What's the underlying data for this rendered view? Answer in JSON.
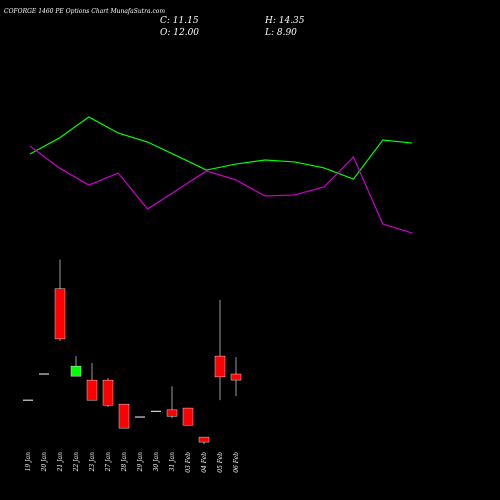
{
  "chart_data": {
    "type": "candlestick",
    "title": "COFORGE 1460 PE Options Chart MunafaSutra.com",
    "ohlc_labels": [
      "C: 11.15",
      "H: 14.35",
      "O: 12.00",
      "L: 8.90"
    ],
    "categories": [
      "19 Jan",
      "20 Jan",
      "21 Jan",
      "22 Jan",
      "23 Jan",
      "27 Jan",
      "28 Jan",
      "29 Jan",
      "30 Jan",
      "31 Jan",
      "03 Feb",
      "04 Feb",
      "05 Feb",
      "06 Feb"
    ],
    "open": [
      8.35,
      12.0,
      23.9,
      11.7,
      11.15,
      11.15,
      7.8,
      6.0,
      6.8,
      7.0,
      7.25,
      3.2,
      14.5,
      12.0
    ],
    "high": [
      8.35,
      12.0,
      27.95,
      14.5,
      13.55,
      11.45,
      7.8,
      6.0,
      6.8,
      10.3,
      7.25,
      3.2,
      22.35,
      14.35
    ],
    "low": [
      8.35,
      12.0,
      16.6,
      11.7,
      8.35,
      7.4,
      4.45,
      6.0,
      6.8,
      5.85,
      4.85,
      2.2,
      8.35,
      8.9
    ],
    "close": [
      8.35,
      12.0,
      16.9,
      13.1,
      8.35,
      7.65,
      4.45,
      6.0,
      6.8,
      6.1,
      4.85,
      2.5,
      11.6,
      11.15
    ],
    "up_color": "#00ff00",
    "down_color": "#ff0000",
    "doji_color": "#ffffff",
    "ylim": [
      1.4,
      29.3
    ],
    "y2lim": [
      0,
      100
    ],
    "series": [
      {
        "color": "#00ff00",
        "axis": "y2",
        "values": [
          64,
          74.7,
          88.7,
          78,
          72,
          62.7,
          53.3,
          57.3,
          60,
          58.7,
          54.7,
          47.3,
          73.3,
          71.3
        ]
      },
      {
        "color": "#cc00cc",
        "axis": "y2",
        "values": [
          69.3,
          54.7,
          43.3,
          51.3,
          27.3,
          40,
          52.7,
          46.7,
          36,
          36.7,
          42,
          62,
          17.3,
          11.3
        ]
      }
    ]
  }
}
